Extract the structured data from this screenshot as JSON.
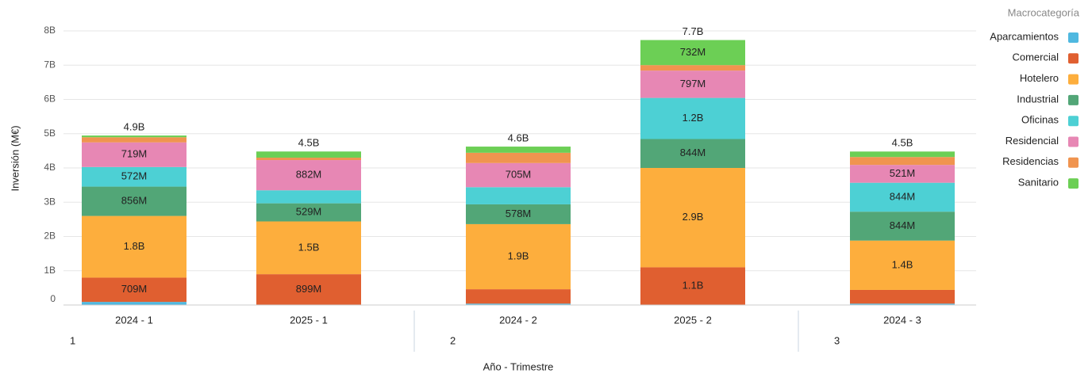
{
  "chart_data": {
    "type": "stacked_bar",
    "ylabel": "Inversión (M€)",
    "xlabel": "Año - Trimestre",
    "legend_title": "Macrocategoría",
    "legend": "top-right",
    "grid": true,
    "categories": [
      "2024 - 1",
      "2025 - 1",
      "2024 - 2",
      "2025 - 2",
      "2024 - 3"
    ],
    "group_labels": [
      "1",
      "2",
      "3"
    ],
    "ylim": [
      0,
      8000000000
    ],
    "yticks": [
      0,
      {
        "value": 1000000000,
        "label": "1B"
      },
      {
        "value": 2000000000,
        "label": "2B"
      },
      {
        "value": 3000000000,
        "label": "3B"
      },
      {
        "value": 4000000000,
        "label": "4B"
      },
      {
        "value": 5000000000,
        "label": "5B"
      },
      {
        "value": 6000000000,
        "label": "6B"
      },
      {
        "value": 7000000000,
        "label": "7B"
      },
      {
        "value": 8000000000,
        "label": "8B"
      }
    ],
    "total_labels": [
      "4.9B",
      "4.5B",
      "4.6B",
      "7.7B",
      "4.5B"
    ],
    "series": [
      {
        "name": "Aparcamientos",
        "color": "#4fb8e0",
        "values": [
          90000000,
          0,
          40000000,
          0,
          40000000
        ],
        "value_labels": [
          null,
          null,
          null,
          null,
          null
        ]
      },
      {
        "name": "Comercial",
        "color": "#e05f30",
        "values": [
          709000000,
          899000000,
          420000000,
          1100000000,
          400000000
        ],
        "value_labels": [
          "709M",
          "899M",
          null,
          "1.1B",
          null
        ]
      },
      {
        "name": "Hotelero",
        "color": "#fdae3d",
        "values": [
          1800000000,
          1540000000,
          1900000000,
          2900000000,
          1440000000
        ],
        "value_labels": [
          "1.8B",
          "1.5B",
          "1.9B",
          "2.9B",
          "1.4B"
        ]
      },
      {
        "name": "Industrial",
        "color": "#52a677",
        "values": [
          856000000,
          529000000,
          578000000,
          844000000,
          844000000
        ],
        "value_labels": [
          "856M",
          "529M",
          "578M",
          "844M",
          "844M"
        ]
      },
      {
        "name": "Oficinas",
        "color": "#4dd0d4",
        "values": [
          572000000,
          380000000,
          500000000,
          1200000000,
          844000000
        ],
        "value_labels": [
          "572M",
          null,
          null,
          "1.2B",
          "844M"
        ]
      },
      {
        "name": "Residencial",
        "color": "#e787b4",
        "values": [
          719000000,
          882000000,
          705000000,
          797000000,
          521000000
        ],
        "value_labels": [
          "719M",
          "882M",
          "705M",
          "797M",
          "521M"
        ]
      },
      {
        "name": "Residencias",
        "color": "#f0944f",
        "values": [
          150000000,
          70000000,
          300000000,
          160000000,
          230000000
        ],
        "value_labels": [
          null,
          null,
          null,
          null,
          null
        ]
      },
      {
        "name": "Sanitario",
        "color": "#6ccf55",
        "values": [
          50000000,
          180000000,
          180000000,
          732000000,
          160000000
        ],
        "value_labels": [
          null,
          null,
          null,
          "732M",
          null
        ]
      }
    ]
  }
}
